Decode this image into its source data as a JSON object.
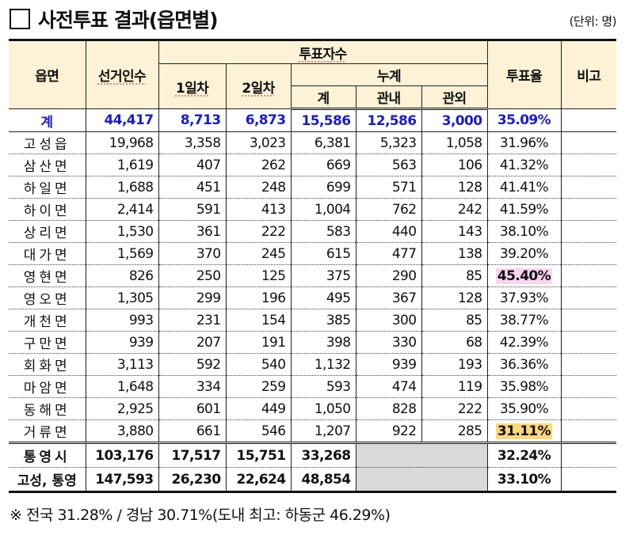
{
  "title": "사전투표 결과(읍면별)",
  "unit": "(단위: 명)",
  "headers": {
    "area": "읍면",
    "electors": "선거인수",
    "voters": "투표자수",
    "day1": "1일차",
    "day2": "2일차",
    "cumulative": "누계",
    "total": "계",
    "inside": "관내",
    "outside": "관외",
    "rate": "투표율",
    "remarks": "비고"
  },
  "total_row": {
    "name": "계",
    "electors": "44,417",
    "day1": "8,713",
    "day2": "6,873",
    "total": "15,586",
    "inside": "12,586",
    "outside": "3,000",
    "rate": "35.09%"
  },
  "rows": [
    {
      "name": "고성읍",
      "electors": "19,968",
      "day1": "3,358",
      "day2": "3,023",
      "total": "6,381",
      "inside": "5,323",
      "outside": "1,058",
      "rate": "31.96%"
    },
    {
      "name": "삼산면",
      "electors": "1,619",
      "day1": "407",
      "day2": "262",
      "total": "669",
      "inside": "563",
      "outside": "106",
      "rate": "41.32%"
    },
    {
      "name": "하일면",
      "electors": "1,688",
      "day1": "451",
      "day2": "248",
      "total": "699",
      "inside": "571",
      "outside": "128",
      "rate": "41.41%"
    },
    {
      "name": "하이면",
      "electors": "2,414",
      "day1": "591",
      "day2": "413",
      "total": "1,004",
      "inside": "762",
      "outside": "242",
      "rate": "41.59%"
    },
    {
      "name": "상리면",
      "electors": "1,530",
      "day1": "361",
      "day2": "222",
      "total": "583",
      "inside": "440",
      "outside": "143",
      "rate": "38.10%"
    },
    {
      "name": "대가면",
      "electors": "1,569",
      "day1": "370",
      "day2": "245",
      "total": "615",
      "inside": "477",
      "outside": "138",
      "rate": "39.20%"
    },
    {
      "name": "영현면",
      "electors": "826",
      "day1": "250",
      "day2": "125",
      "total": "375",
      "inside": "290",
      "outside": "85",
      "rate": "45.40%",
      "highlight": "#f7d5ef"
    },
    {
      "name": "영오면",
      "electors": "1,305",
      "day1": "299",
      "day2": "196",
      "total": "495",
      "inside": "367",
      "outside": "128",
      "rate": "37.93%"
    },
    {
      "name": "개천면",
      "electors": "993",
      "day1": "231",
      "day2": "154",
      "total": "385",
      "inside": "300",
      "outside": "85",
      "rate": "38.77%"
    },
    {
      "name": "구만면",
      "electors": "939",
      "day1": "207",
      "day2": "191",
      "total": "398",
      "inside": "330",
      "outside": "68",
      "rate": "42.39%"
    },
    {
      "name": "회화면",
      "electors": "3,113",
      "day1": "592",
      "day2": "540",
      "total": "1,132",
      "inside": "939",
      "outside": "193",
      "rate": "36.36%"
    },
    {
      "name": "마암면",
      "electors": "1,648",
      "day1": "334",
      "day2": "259",
      "total": "593",
      "inside": "474",
      "outside": "119",
      "rate": "35.98%"
    },
    {
      "name": "동해면",
      "electors": "2,925",
      "day1": "601",
      "day2": "449",
      "total": "1,050",
      "inside": "828",
      "outside": "222",
      "rate": "35.90%"
    },
    {
      "name": "거류면",
      "electors": "3,880",
      "day1": "661",
      "day2": "546",
      "total": "1,207",
      "inside": "922",
      "outside": "285",
      "rate": "31.11%",
      "highlight": "#fcd87a"
    }
  ],
  "summary": [
    {
      "name": "통영시",
      "electors": "103,176",
      "day1": "17,517",
      "day2": "15,751",
      "total": "33,268",
      "rate": "32.24%"
    },
    {
      "name": "고성, 통영",
      "electors": "147,593",
      "day1": "26,230",
      "day2": "22,624",
      "total": "48,854",
      "rate": "33.10%"
    }
  ],
  "note": "※ 전국 31.28% / 경남 30.71%(도내 최고: 하동군 46.29%)"
}
